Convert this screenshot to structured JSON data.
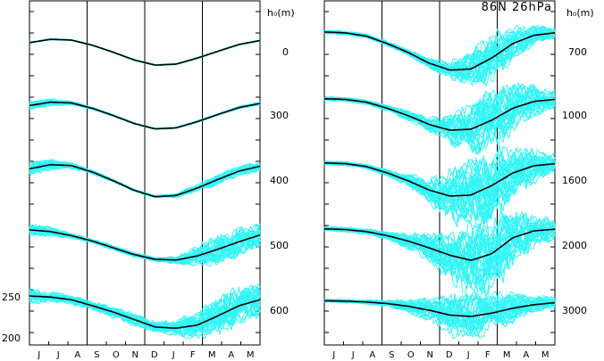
{
  "title": "86N 26hPa",
  "header_left": "h₀(m)",
  "header_right": "h₀(m)",
  "colors": {
    "ensemble": "#33f5f5",
    "mean": "#000000",
    "frame": "#000000"
  },
  "chart_data": [
    {
      "type": "line",
      "panel": "left",
      "months": [
        "J",
        "J",
        "A",
        "S",
        "O",
        "N",
        "D",
        "J",
        "F",
        "M",
        "A",
        "M"
      ],
      "month_separators": [
        "A|S",
        "N|D",
        "F|M"
      ],
      "left_axis_tick_labels": [
        "250",
        "200"
      ],
      "series": [
        {
          "label": "0",
          "mean": [
            0.85,
            0.98,
            0.95,
            0.75,
            0.48,
            0.18,
            -0.02,
            0.02,
            0.25,
            0.52,
            0.78,
            0.93
          ],
          "spread": [
            0.02,
            0.02,
            0.02,
            0.02,
            0.02,
            0.02,
            0.02,
            0.02,
            0.02,
            0.02,
            0.02,
            0.02
          ]
        },
        {
          "label": "300",
          "mean": [
            0.85,
            0.98,
            0.95,
            0.75,
            0.48,
            0.18,
            -0.02,
            0.02,
            0.25,
            0.52,
            0.78,
            0.93
          ],
          "spread": [
            0.14,
            0.12,
            0.06,
            0.04,
            0.03,
            0.02,
            0.02,
            0.02,
            0.03,
            0.03,
            0.04,
            0.05
          ]
        },
        {
          "label": "400",
          "mean": [
            0.85,
            0.98,
            0.95,
            0.75,
            0.48,
            0.18,
            -0.02,
            0.02,
            0.25,
            0.52,
            0.78,
            0.93
          ],
          "spread": [
            0.18,
            0.15,
            0.08,
            0.05,
            0.04,
            0.03,
            0.03,
            0.05,
            0.1,
            0.14,
            0.14,
            0.12
          ]
        },
        {
          "label": "500",
          "mean": [
            0.95,
            0.9,
            0.78,
            0.62,
            0.42,
            0.22,
            0.08,
            0.06,
            0.18,
            0.38,
            0.6,
            0.8
          ],
          "spread": [
            0.15,
            0.12,
            0.07,
            0.05,
            0.06,
            0.06,
            0.05,
            0.1,
            0.25,
            0.38,
            0.38,
            0.3
          ]
        },
        {
          "label": "600",
          "mean": [
            0.88,
            0.85,
            0.78,
            0.62,
            0.45,
            0.25,
            0.05,
            0.02,
            0.1,
            0.35,
            0.62,
            0.78
          ],
          "spread": [
            0.16,
            0.13,
            0.1,
            0.1,
            0.12,
            0.15,
            0.12,
            0.18,
            0.32,
            0.42,
            0.45,
            0.38
          ]
        }
      ]
    },
    {
      "type": "line",
      "panel": "right",
      "months": [
        "J",
        "J",
        "A",
        "S",
        "O",
        "N",
        "D",
        "J",
        "F",
        "M",
        "A",
        "M"
      ],
      "month_separators": [
        "A|S",
        "N|D",
        "F|M"
      ],
      "series": [
        {
          "label": "700",
          "mean": [
            0.98,
            0.96,
            0.88,
            0.7,
            0.48,
            0.22,
            0.05,
            0.08,
            0.35,
            0.7,
            0.9,
            0.96
          ],
          "spread": [
            0.04,
            0.04,
            0.04,
            0.05,
            0.06,
            0.1,
            0.18,
            0.35,
            0.5,
            0.35,
            0.2,
            0.1
          ]
        },
        {
          "label": "1000",
          "mean": [
            0.98,
            0.96,
            0.88,
            0.7,
            0.48,
            0.22,
            0.05,
            0.08,
            0.35,
            0.7,
            0.9,
            0.96
          ],
          "spread": [
            0.05,
            0.05,
            0.06,
            0.08,
            0.12,
            0.18,
            0.35,
            0.6,
            0.8,
            0.6,
            0.4,
            0.2
          ]
        },
        {
          "label": "1600",
          "mean": [
            0.98,
            0.96,
            0.88,
            0.7,
            0.48,
            0.22,
            0.05,
            0.08,
            0.35,
            0.7,
            0.9,
            0.96
          ],
          "spread": [
            0.05,
            0.05,
            0.06,
            0.08,
            0.15,
            0.3,
            0.6,
            0.9,
            0.9,
            0.6,
            0.4,
            0.2
          ]
        },
        {
          "label": "2000",
          "mean": [
            0.98,
            0.96,
            0.9,
            0.78,
            0.62,
            0.42,
            0.2,
            0.05,
            0.25,
            0.72,
            0.92,
            0.97
          ],
          "spread": [
            0.06,
            0.06,
            0.07,
            0.1,
            0.2,
            0.35,
            0.6,
            0.9,
            0.95,
            0.7,
            0.4,
            0.25
          ]
        },
        {
          "label": "3000",
          "mean": [
            0.98,
            0.96,
            0.92,
            0.84,
            0.7,
            0.5,
            0.25,
            0.18,
            0.35,
            0.6,
            0.78,
            0.88
          ],
          "spread": [
            0.08,
            0.08,
            0.1,
            0.15,
            0.3,
            0.5,
            0.9,
            1.0,
            0.9,
            0.65,
            0.4,
            0.25
          ]
        }
      ]
    }
  ]
}
